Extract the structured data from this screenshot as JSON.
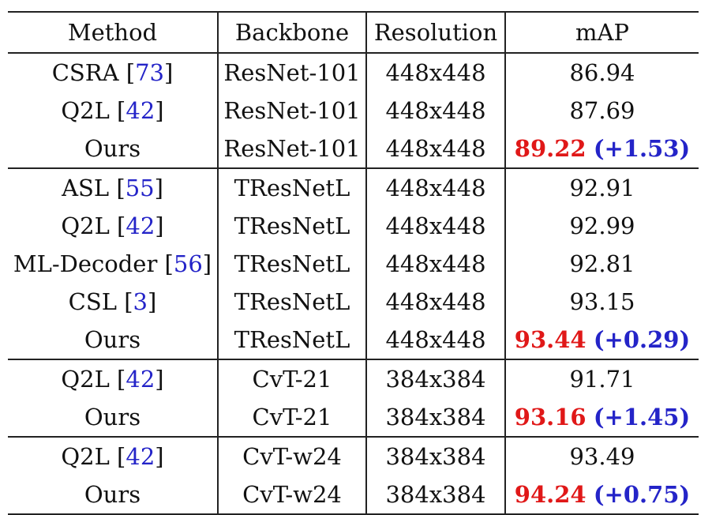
{
  "headers": [
    "Method",
    "Backbone",
    "Resolution",
    "mAP"
  ],
  "groups": [
    {
      "rows": [
        {
          "method": "CSRA",
          "cite": "73",
          "backbone": "ResNet-101",
          "resolution": "448x448",
          "map": "86.94",
          "gain": ""
        },
        {
          "method": "Q2L",
          "cite": "42",
          "backbone": "ResNet-101",
          "resolution": "448x448",
          "map": "87.69",
          "gain": ""
        },
        {
          "method": "Ours",
          "cite": "",
          "backbone": "ResNet-101",
          "resolution": "448x448",
          "map": "89.22",
          "gain": "(+1.53)"
        }
      ]
    },
    {
      "rows": [
        {
          "method": "ASL",
          "cite": "55",
          "backbone": "TResNetL",
          "resolution": "448x448",
          "map": "92.91",
          "gain": ""
        },
        {
          "method": "Q2L",
          "cite": "42",
          "backbone": "TResNetL",
          "resolution": "448x448",
          "map": "92.99",
          "gain": ""
        },
        {
          "method": "ML-Decoder",
          "cite": "56",
          "backbone": "TResNetL",
          "resolution": "448x448",
          "map": "92.81",
          "gain": ""
        },
        {
          "method": "CSL",
          "cite": "3",
          "backbone": "TResNetL",
          "resolution": "448x448",
          "map": "93.15",
          "gain": ""
        },
        {
          "method": "Ours",
          "cite": "",
          "backbone": "TResNetL",
          "resolution": "448x448",
          "map": "93.44",
          "gain": "(+0.29)"
        }
      ]
    },
    {
      "rows": [
        {
          "method": "Q2L",
          "cite": "42",
          "backbone": "CvT-21",
          "resolution": "384x384",
          "map": "91.71",
          "gain": ""
        },
        {
          "method": "Ours",
          "cite": "",
          "backbone": "CvT-21",
          "resolution": "384x384",
          "map": "93.16",
          "gain": "(+1.45)"
        }
      ]
    },
    {
      "rows": [
        {
          "method": "Q2L",
          "cite": "42",
          "backbone": "CvT-w24",
          "resolution": "384x384",
          "map": "93.49",
          "gain": ""
        },
        {
          "method": "Ours",
          "cite": "",
          "backbone": "CvT-w24",
          "resolution": "384x384",
          "map": "94.24",
          "gain": "(+0.75)"
        }
      ]
    }
  ],
  "colors": {
    "best": "#e01818",
    "gain": "#2424c8",
    "citation": "#2424c8",
    "text": "#111111"
  }
}
